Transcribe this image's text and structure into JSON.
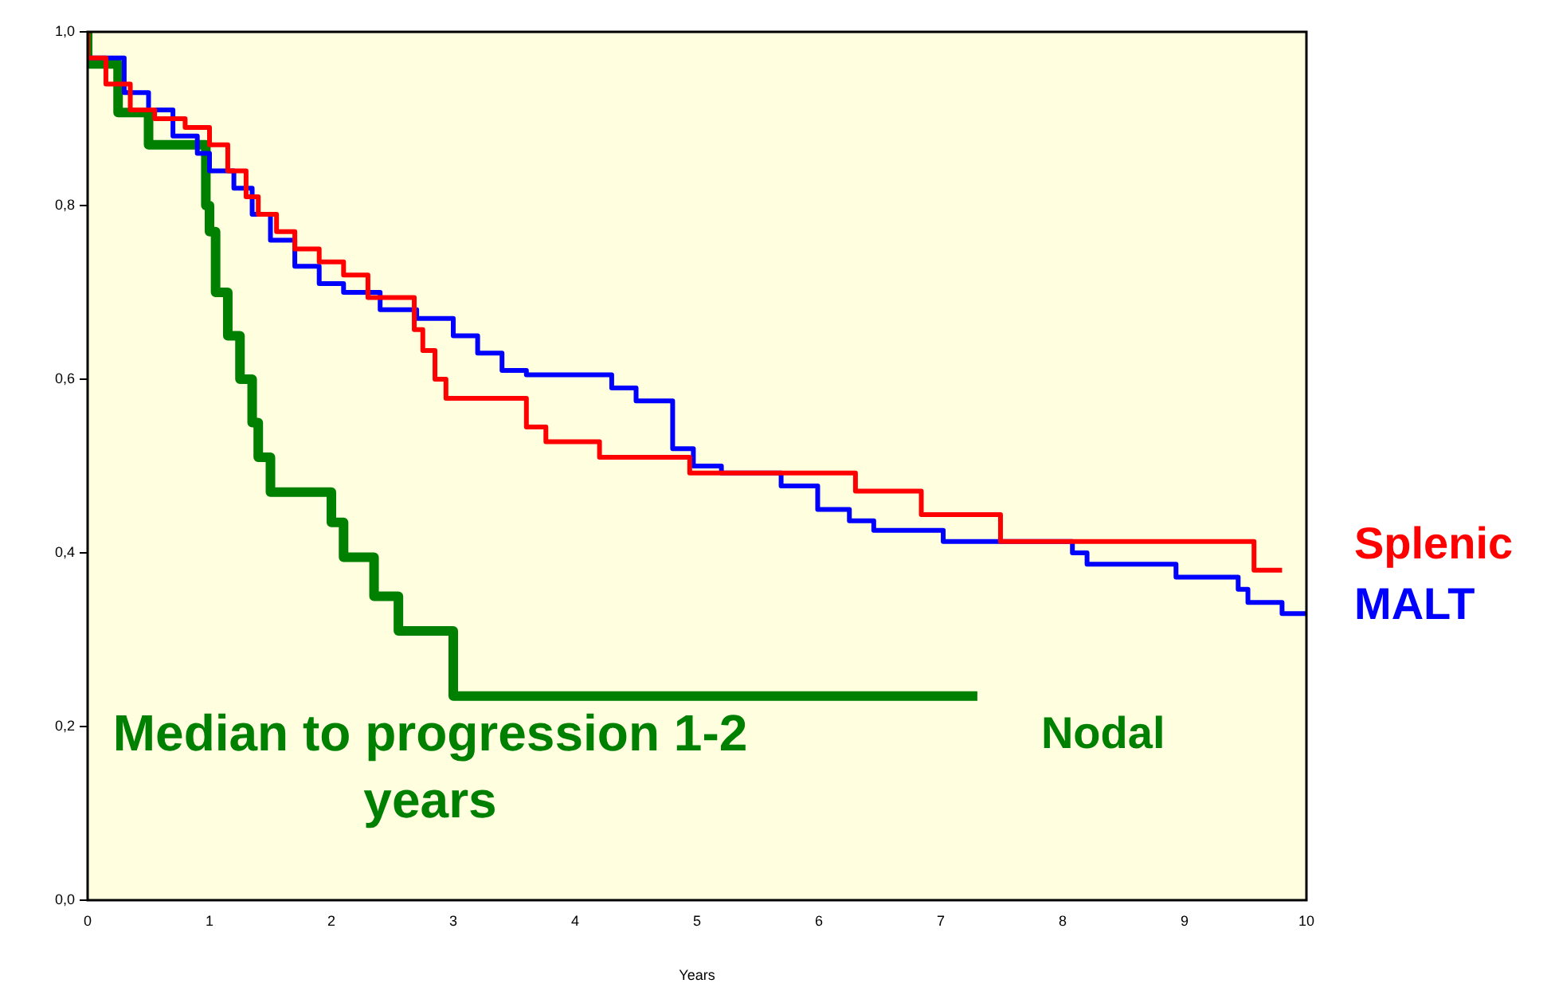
{
  "chart_data": {
    "type": "step",
    "xlabel": "Years",
    "xlim": [
      0,
      10
    ],
    "xticks": [
      0,
      1,
      2,
      3,
      4,
      5,
      6,
      7,
      8,
      9,
      10
    ],
    "ylim": [
      0,
      1
    ],
    "yticks": [
      {
        "value": 0,
        "label": "0,0"
      },
      {
        "value": 0.2,
        "label": "0,2"
      },
      {
        "value": 0.4,
        "label": "0,4"
      },
      {
        "value": 0.6,
        "label": "0,6"
      },
      {
        "value": 0.8,
        "label": "0,8"
      },
      {
        "value": 1,
        "label": "1,0"
      }
    ],
    "grid": false,
    "legend": false,
    "marker": "none",
    "line_style": "solid",
    "annotations": [
      "Median to progression 1-2 years"
    ],
    "series": [
      {
        "name": "Splenic",
        "color": "#ff0000",
        "x": [
          0,
          0.15,
          0.35,
          0.55,
          0.8,
          1.0,
          1.15,
          1.3,
          1.4,
          1.55,
          1.7,
          1.9,
          2.1,
          2.3,
          2.68,
          2.75,
          2.85,
          2.94,
          3.6,
          3.76,
          4.2,
          4.94,
          6.3,
          6.84,
          7.49,
          9.57,
          9.8
        ],
        "values": [
          1,
          0.97,
          0.94,
          0.91,
          0.9,
          0.89,
          0.87,
          0.84,
          0.81,
          0.79,
          0.77,
          0.75,
          0.735,
          0.72,
          0.694,
          0.657,
          0.633,
          0.6,
          0.578,
          0.545,
          0.528,
          0.51,
          0.492,
          0.471,
          0.444,
          0.413,
          0.38
        ]
      },
      {
        "name": "MALT",
        "color": "#0000ff",
        "x": [
          0,
          0.3,
          0.5,
          0.7,
          0.9,
          1.0,
          1.2,
          1.35,
          1.5,
          1.7,
          1.9,
          2.1,
          2.4,
          2.7,
          3.0,
          3.2,
          3.4,
          3.6,
          4.3,
          4.5,
          4.8,
          4.97,
          5.2,
          5.69,
          5.99,
          6.25,
          6.45,
          7.02,
          8.08,
          8.2,
          8.93,
          9.44,
          9.52,
          9.8,
          9.95,
          10
        ],
        "values": [
          1,
          0.97,
          0.93,
          0.91,
          0.88,
          0.86,
          0.84,
          0.82,
          0.79,
          0.76,
          0.73,
          0.71,
          0.7,
          0.68,
          0.67,
          0.65,
          0.63,
          0.61,
          0.605,
          0.59,
          0.575,
          0.52,
          0.5,
          0.492,
          0.477,
          0.45,
          0.437,
          0.426,
          0.413,
          0.4,
          0.387,
          0.372,
          0.358,
          0.343,
          0.33,
          0.33
        ]
      },
      {
        "name": "Nodal",
        "color": "#008000",
        "x": [
          0,
          0.25,
          0.5,
          0.97,
          1.0,
          1.05,
          1.15,
          1.25,
          1.35,
          1.4,
          1.5,
          2.0,
          2.1,
          2.35,
          2.55,
          3.0,
          4.95,
          7.3
        ],
        "values": [
          1,
          0.963,
          0.907,
          0.87,
          0.8,
          0.77,
          0.7,
          0.65,
          0.6,
          0.55,
          0.51,
          0.47,
          0.435,
          0.395,
          0.35,
          0.31,
          0.235,
          0.235
        ]
      }
    ]
  }
}
